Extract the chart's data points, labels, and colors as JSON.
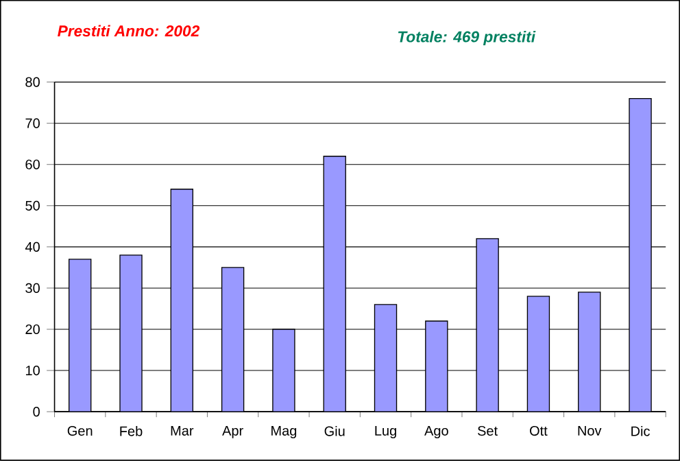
{
  "chart_data": {
    "type": "bar",
    "title": "Prestiti Anno:  2002",
    "subtitle": "Totale:  469  prestiti",
    "categories": [
      "Gen",
      "Feb",
      "Mar",
      "Apr",
      "Mag",
      "Giu",
      "Lug",
      "Ago",
      "Set",
      "Ott",
      "Nov",
      "Dic"
    ],
    "values": [
      37,
      38,
      54,
      35,
      20,
      62,
      26,
      22,
      42,
      28,
      29,
      76
    ],
    "color": "#9999ff",
    "ylim": [
      0,
      80
    ],
    "yticks": [
      0,
      10,
      20,
      30,
      40,
      50,
      60,
      70,
      80
    ],
    "grid": "y"
  }
}
